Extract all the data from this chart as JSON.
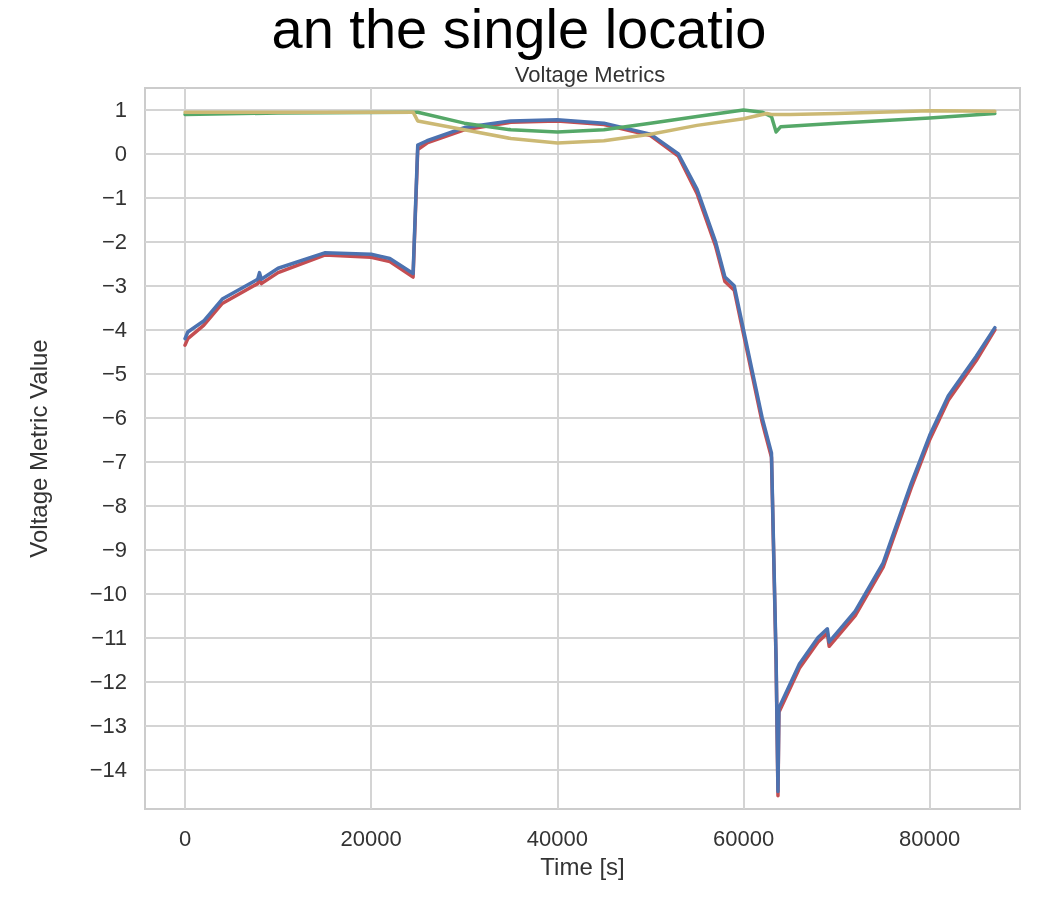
{
  "chart_data": {
    "type": "line",
    "title": "Voltage Metrics",
    "xlabel": "Time [s]",
    "ylabel": "Voltage Metric Value",
    "annotations": [
      "an the single locatio"
    ],
    "xlim": [
      -4300,
      89700
    ],
    "xticks": [
      0,
      20000,
      40000,
      60000,
      80000
    ],
    "ylim": [
      -14.9,
      1.5
    ],
    "yticks": [
      1,
      0,
      {
        "value": -1,
        "label": "−1"
      },
      {
        "value": -2,
        "label": "−2"
      },
      {
        "value": -3,
        "label": "−3"
      },
      {
        "value": -4,
        "label": "−4"
      },
      {
        "value": -5,
        "label": "−5"
      },
      {
        "value": -6,
        "label": "−6"
      },
      {
        "value": -7,
        "label": "−7"
      },
      {
        "value": -8,
        "label": "−8"
      },
      {
        "value": -9,
        "label": "−9"
      },
      {
        "value": -10,
        "label": "−10"
      },
      {
        "value": -11,
        "label": "−11"
      },
      {
        "value": -12,
        "label": "−12"
      },
      {
        "value": -13,
        "label": "−13"
      },
      {
        "value": -14,
        "label": "−14"
      }
    ],
    "grid": true,
    "marker": "none",
    "line_style": "solid",
    "x": [
      0,
      300,
      2000,
      4000,
      7800,
      8000,
      8200,
      10000,
      15000,
      20000,
      22000,
      24500,
      25000,
      26000,
      30000,
      35000,
      40000,
      45000,
      50000,
      53000,
      55000,
      57000,
      58000,
      59000,
      60000,
      61000,
      62000,
      63000,
      63500,
      63700,
      63800,
      66000,
      68000,
      69000,
      69200,
      72000,
      75000,
      76000,
      78000,
      80000,
      82000,
      85000,
      87000
    ],
    "series": [
      {
        "color": "#c44e52",
        "values": [
          -4.35,
          -4.2,
          -3.9,
          -3.4,
          -2.95,
          -2.85,
          -2.95,
          -2.7,
          -2.3,
          -2.35,
          -2.45,
          -2.8,
          0.1,
          0.25,
          0.55,
          0.72,
          0.75,
          0.67,
          0.42,
          -0.05,
          -0.9,
          -2.1,
          -2.9,
          -3.1,
          -4.1,
          -5.1,
          -6.1,
          -6.9,
          -11.6,
          -14.6,
          -12.7,
          -11.7,
          -11.1,
          -10.9,
          -11.2,
          -10.5,
          -9.4,
          -8.8,
          -7.6,
          -6.5,
          -5.6,
          -4.7,
          -4.0
        ]
      },
      {
        "color": "#4c72b0",
        "values": [
          -4.2,
          -4.05,
          -3.8,
          -3.3,
          -2.85,
          -2.7,
          -2.85,
          -2.6,
          -2.25,
          -2.28,
          -2.38,
          -2.72,
          0.2,
          0.3,
          0.6,
          0.75,
          0.78,
          0.7,
          0.45,
          0,
          -0.8,
          -2,
          -2.8,
          -3.0,
          -4,
          -5,
          -6,
          -6.8,
          -11.5,
          -14.5,
          -12.6,
          -11.6,
          -11,
          -10.8,
          -11.1,
          -10.4,
          -9.3,
          -8.7,
          -7.5,
          -6.4,
          -5.5,
          -4.6,
          -3.95
        ]
      },
      {
        "color": "#55a868",
        "x": [
          0,
          10000,
          24500,
          25000,
          30000,
          35000,
          40000,
          45000,
          50000,
          55000,
          60000,
          62000,
          63000,
          63500,
          64000,
          70000,
          80000,
          87000
        ],
        "values": [
          0.9,
          0.93,
          0.95,
          0.95,
          0.7,
          0.55,
          0.5,
          0.55,
          0.7,
          0.85,
          1.0,
          0.95,
          0.85,
          0.5,
          0.62,
          0.7,
          0.82,
          0.92
        ]
      },
      {
        "color": "#ccb974",
        "x": [
          0,
          24500,
          25000,
          30000,
          35000,
          40000,
          45000,
          50000,
          55000,
          60000,
          62500,
          63000,
          65000,
          70000,
          80000,
          87000
        ],
        "values": [
          0.95,
          0.95,
          0.75,
          0.55,
          0.35,
          0.25,
          0.3,
          0.45,
          0.65,
          0.8,
          0.92,
          0.9,
          0.9,
          0.92,
          0.98,
          0.97
        ]
      }
    ]
  }
}
